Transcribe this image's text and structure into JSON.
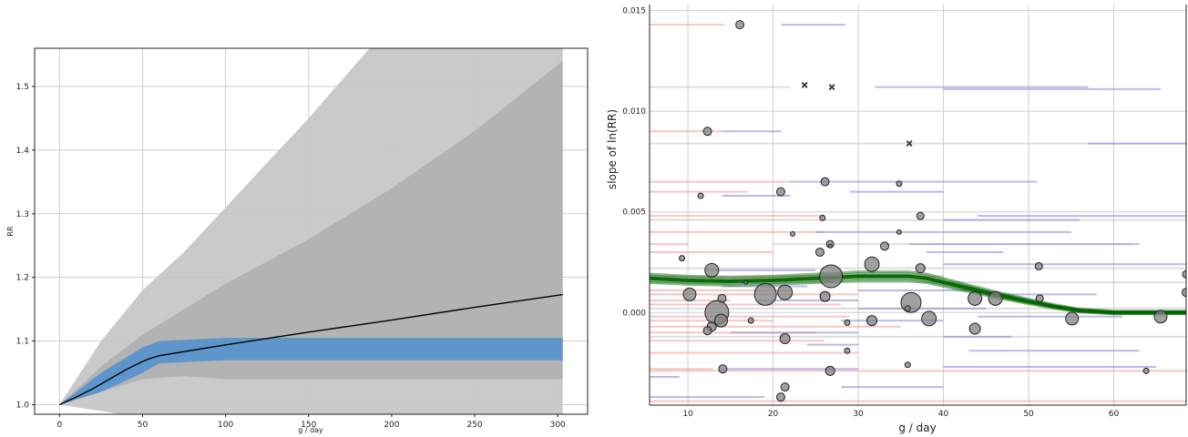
{
  "chart_data": [
    {
      "type": "line",
      "xlabel": "g / day",
      "ylabel": "RR",
      "xlim": [
        -15,
        318
      ],
      "ylim": [
        0.985,
        1.56
      ],
      "xticks": [
        "0",
        "50",
        "100",
        "150",
        "200",
        "250",
        "300"
      ],
      "yticks": [
        "1.0",
        "1.1",
        "1.2",
        "1.3",
        "1.4",
        "1.5"
      ],
      "grid": true,
      "bands": [
        {
          "name": "outer",
          "color": "#c4c4c4",
          "x": [
            0,
            25,
            50,
            75,
            100,
            150,
            200,
            250,
            303
          ],
          "upper": [
            1.0,
            1.1,
            1.18,
            1.24,
            1.31,
            1.45,
            1.6,
            1.75,
            1.9
          ],
          "lower": [
            1.0,
            0.99,
            0.98,
            0.98,
            0.98,
            0.98,
            0.98,
            0.98,
            0.98
          ]
        },
        {
          "name": "inner",
          "color": "#b0b0b0",
          "x": [
            0,
            25,
            50,
            75,
            100,
            150,
            200,
            250,
            303
          ],
          "upper": [
            1.0,
            1.06,
            1.11,
            1.15,
            1.19,
            1.26,
            1.34,
            1.43,
            1.54
          ],
          "lower": [
            1.0,
            1.02,
            1.04,
            1.045,
            1.04,
            1.04,
            1.04,
            1.04,
            1.04
          ]
        },
        {
          "name": "core",
          "color": "#4f8fcf",
          "x": [
            0,
            25,
            50,
            60,
            100,
            150,
            200,
            250,
            303
          ],
          "upper": [
            1.0,
            1.05,
            1.09,
            1.1,
            1.105,
            1.105,
            1.105,
            1.105,
            1.105
          ],
          "lower": [
            1.0,
            1.02,
            1.05,
            1.065,
            1.07,
            1.07,
            1.07,
            1.07,
            1.07
          ]
        }
      ],
      "series": [
        {
          "color": "#000000",
          "x": [
            0,
            10,
            20,
            30,
            40,
            50,
            55,
            60,
            100,
            150,
            200,
            250,
            303
          ],
          "y": [
            1.0,
            1.012,
            1.025,
            1.04,
            1.055,
            1.068,
            1.073,
            1.077,
            1.094,
            1.114,
            1.133,
            1.153,
            1.173
          ]
        }
      ]
    },
    {
      "type": "scatter",
      "xlabel": "g / day",
      "ylabel": "slope of ln(RR)",
      "xlim": [
        5.5,
        68.5
      ],
      "ylim": [
        -0.0046,
        0.0153
      ],
      "xticks": [
        "10",
        "20",
        "30",
        "40",
        "50",
        "60"
      ],
      "yticks": [
        "0.000",
        "0.005",
        "0.010",
        "0.015"
      ],
      "grid": true,
      "points": [
        {
          "x": 16.1,
          "y": 0.0143,
          "r": 4.5
        },
        {
          "x": 12.3,
          "y": 0.009,
          "r": 4.5
        },
        {
          "x": 11.5,
          "y": 0.0058,
          "r": 3
        },
        {
          "x": 20.9,
          "y": 0.006,
          "r": 4.5
        },
        {
          "x": 26.1,
          "y": 0.0065,
          "r": 4.5
        },
        {
          "x": 34.8,
          "y": 0.0064,
          "r": 3
        },
        {
          "x": 25.8,
          "y": 0.0047,
          "r": 3
        },
        {
          "x": 22.3,
          "y": 0.0039,
          "r": 2.5
        },
        {
          "x": 37.3,
          "y": 0.0048,
          "r": 4
        },
        {
          "x": 34.8,
          "y": 0.004,
          "r": 2.5
        },
        {
          "x": 26.7,
          "y": 0.0034,
          "r": 4
        },
        {
          "x": 26.7,
          "y": 0.0033,
          "r": 2
        },
        {
          "x": 25.5,
          "y": 0.003,
          "r": 4.5
        },
        {
          "x": 33.1,
          "y": 0.0033,
          "r": 4.5
        },
        {
          "x": 9.3,
          "y": 0.0027,
          "r": 3
        },
        {
          "x": 12.8,
          "y": 0.0021,
          "r": 7.5
        },
        {
          "x": 26.8,
          "y": 0.0018,
          "r": 12.5
        },
        {
          "x": 31.6,
          "y": 0.0024,
          "r": 8
        },
        {
          "x": 37.3,
          "y": 0.0022,
          "r": 5
        },
        {
          "x": 51.2,
          "y": 0.0023,
          "r": 4
        },
        {
          "x": 16.8,
          "y": 0.0015,
          "r": 2
        },
        {
          "x": 10.2,
          "y": 0.0009,
          "r": 7
        },
        {
          "x": 14.0,
          "y": 0.0007,
          "r": 4.5
        },
        {
          "x": 19.1,
          "y": 0.0009,
          "r": 12
        },
        {
          "x": 21.4,
          "y": 0.001,
          "r": 8
        },
        {
          "x": 26.1,
          "y": 0.0008,
          "r": 5.5
        },
        {
          "x": 36.2,
          "y": 0.0005,
          "r": 11
        },
        {
          "x": 35.8,
          "y": 0.0002,
          "r": 3
        },
        {
          "x": 43.7,
          "y": 0.0007,
          "r": 7.5
        },
        {
          "x": 46.1,
          "y": 0.0007,
          "r": 7.5
        },
        {
          "x": 51.3,
          "y": 0.0007,
          "r": 4
        },
        {
          "x": 68.5,
          "y": 0.001,
          "r": 4.5
        },
        {
          "x": 68.5,
          "y": 0.0019,
          "r": 4
        },
        {
          "x": 13.4,
          "y": 0.0,
          "r": 13
        },
        {
          "x": 13.9,
          "y": -0.0004,
          "r": 7
        },
        {
          "x": 12.8,
          "y": -0.0007,
          "r": 5
        },
        {
          "x": 12.3,
          "y": -0.0009,
          "r": 4.5
        },
        {
          "x": 17.4,
          "y": -0.0004,
          "r": 3
        },
        {
          "x": 21.4,
          "y": -0.0013,
          "r": 5.5
        },
        {
          "x": 28.7,
          "y": -0.0005,
          "r": 3
        },
        {
          "x": 31.6,
          "y": -0.0004,
          "r": 5.5
        },
        {
          "x": 38.3,
          "y": -0.0003,
          "r": 8
        },
        {
          "x": 43.7,
          "y": -0.0008,
          "r": 6
        },
        {
          "x": 55.1,
          "y": -0.0003,
          "r": 7
        },
        {
          "x": 65.5,
          "y": -0.0002,
          "r": 7
        },
        {
          "x": 28.7,
          "y": -0.0019,
          "r": 3
        },
        {
          "x": 14.1,
          "y": -0.0028,
          "r": 4.5
        },
        {
          "x": 26.7,
          "y": -0.0029,
          "r": 5
        },
        {
          "x": 35.8,
          "y": -0.0026,
          "r": 3
        },
        {
          "x": 63.8,
          "y": -0.0029,
          "r": 3
        },
        {
          "x": 21.4,
          "y": -0.0037,
          "r": 4.5
        },
        {
          "x": 20.9,
          "y": -0.0042,
          "r": 4.5
        }
      ],
      "crosses": [
        {
          "x": 23.7,
          "y": 0.0113
        },
        {
          "x": 26.9,
          "y": 0.0112
        },
        {
          "x": 36.0,
          "y": 0.0084
        }
      ],
      "intervals": [
        {
          "x0": 5.5,
          "x1": 14.3,
          "y": 0.0143,
          "color": "red"
        },
        {
          "x0": 21.0,
          "x1": 28.5,
          "y": 0.0143,
          "color": "blue"
        },
        {
          "x0": 5.5,
          "x1": 22.0,
          "y": 0.0112,
          "color": "gray"
        },
        {
          "x0": 32.0,
          "x1": 57.0,
          "y": 0.0112,
          "color": "blue"
        },
        {
          "x0": 40.0,
          "x1": 65.5,
          "y": 0.0111,
          "color": "blue"
        },
        {
          "x0": 14.0,
          "x1": 21.0,
          "y": 0.009,
          "color": "blue"
        },
        {
          "x0": 5.5,
          "x1": 14.0,
          "y": 0.009,
          "color": "red"
        },
        {
          "x0": 5.5,
          "x1": 68.5,
          "y": 0.0084,
          "color": "gray"
        },
        {
          "x0": 57.0,
          "x1": 68.5,
          "y": 0.0084,
          "color": "blue"
        },
        {
          "x0": 5.5,
          "x1": 22.0,
          "y": 0.0065,
          "color": "red"
        },
        {
          "x0": 22.0,
          "x1": 51.0,
          "y": 0.0065,
          "color": "blue"
        },
        {
          "x0": 5.5,
          "x1": 17.0,
          "y": 0.006,
          "color": "red"
        },
        {
          "x0": 29.0,
          "x1": 40.0,
          "y": 0.006,
          "color": "blue"
        },
        {
          "x0": 14.0,
          "x1": 22.0,
          "y": 0.0058,
          "color": "blue"
        },
        {
          "x0": 5.5,
          "x1": 26.0,
          "y": 0.0048,
          "color": "red"
        },
        {
          "x0": 44.0,
          "x1": 68.5,
          "y": 0.0048,
          "color": "blue"
        },
        {
          "x0": 5.5,
          "x1": 68.5,
          "y": 0.0046,
          "color": "gray"
        },
        {
          "x0": 40.0,
          "x1": 56.0,
          "y": 0.0046,
          "color": "blue"
        },
        {
          "x0": 5.5,
          "x1": 26.0,
          "y": 0.004,
          "color": "red"
        },
        {
          "x0": 25.0,
          "x1": 55.0,
          "y": 0.004,
          "color": "blue"
        },
        {
          "x0": 5.5,
          "x1": 10.0,
          "y": 0.0034,
          "color": "red"
        },
        {
          "x0": 20.0,
          "x1": 62.0,
          "y": 0.0034,
          "color": "gray"
        },
        {
          "x0": 36.0,
          "x1": 63.0,
          "y": 0.0034,
          "color": "blue"
        },
        {
          "x0": 5.5,
          "x1": 20.0,
          "y": 0.003,
          "color": "red"
        },
        {
          "x0": 38.0,
          "x1": 47.0,
          "y": 0.003,
          "color": "blue"
        },
        {
          "x0": 40.0,
          "x1": 68.5,
          "y": 0.0024,
          "color": "blue"
        },
        {
          "x0": 5.5,
          "x1": 68.5,
          "y": 0.0022,
          "color": "gray"
        },
        {
          "x0": 12.0,
          "x1": 25.0,
          "y": 0.0021,
          "color": "blue"
        },
        {
          "x0": 5.5,
          "x1": 40.0,
          "y": 0.0018,
          "color": "red"
        },
        {
          "x0": 5.5,
          "x1": 68.5,
          "y": 0.0015,
          "color": "gray"
        },
        {
          "x0": 14.0,
          "x1": 24.0,
          "y": 0.0013,
          "color": "blue"
        },
        {
          "x0": 5.5,
          "x1": 22.0,
          "y": 0.0011,
          "color": "red"
        },
        {
          "x0": 30.0,
          "x1": 44.0,
          "y": 0.0011,
          "color": "blue"
        },
        {
          "x0": 5.5,
          "x1": 30.0,
          "y": 0.0009,
          "color": "red"
        },
        {
          "x0": 45.0,
          "x1": 58.0,
          "y": 0.0009,
          "color": "blue"
        },
        {
          "x0": 5.5,
          "x1": 15.0,
          "y": 0.0006,
          "color": "red"
        },
        {
          "x0": 18.0,
          "x1": 30.0,
          "y": 0.0006,
          "color": "blue"
        },
        {
          "x0": 5.5,
          "x1": 28.0,
          "y": 0.0004,
          "color": "red"
        },
        {
          "x0": 5.5,
          "x1": 68.5,
          "y": 0.0002,
          "color": "gray"
        },
        {
          "x0": 30.0,
          "x1": 45.0,
          "y": 0.0002,
          "color": "blue"
        },
        {
          "x0": 5.5,
          "x1": 29.0,
          "y": -0.0002,
          "color": "red"
        },
        {
          "x0": 44.0,
          "x1": 61.0,
          "y": -0.0002,
          "color": "blue"
        },
        {
          "x0": 5.5,
          "x1": 20.0,
          "y": -0.0004,
          "color": "red"
        },
        {
          "x0": 28.0,
          "x1": 40.0,
          "y": -0.0004,
          "color": "blue"
        },
        {
          "x0": 5.5,
          "x1": 35.0,
          "y": -0.0007,
          "color": "red"
        },
        {
          "x0": 5.5,
          "x1": 25.0,
          "y": -0.001,
          "color": "red"
        },
        {
          "x0": 15.0,
          "x1": 30.0,
          "y": -0.001,
          "color": "blue"
        },
        {
          "x0": 5.5,
          "x1": 68.5,
          "y": -0.0012,
          "color": "gray"
        },
        {
          "x0": 40.0,
          "x1": 48.0,
          "y": -0.0012,
          "color": "blue"
        },
        {
          "x0": 5.5,
          "x1": 26.0,
          "y": -0.0014,
          "color": "red"
        },
        {
          "x0": 24.0,
          "x1": 30.0,
          "y": -0.0016,
          "color": "blue"
        },
        {
          "x0": 5.5,
          "x1": 30.0,
          "y": -0.002,
          "color": "red"
        },
        {
          "x0": 43.0,
          "x1": 63.0,
          "y": -0.0019,
          "color": "blue"
        },
        {
          "x0": 5.5,
          "x1": 13.0,
          "y": -0.0028,
          "color": "red"
        },
        {
          "x0": 14.0,
          "x1": 30.0,
          "y": -0.0028,
          "color": "blue"
        },
        {
          "x0": 40.0,
          "x1": 65.0,
          "y": -0.0027,
          "color": "blue"
        },
        {
          "x0": 5.5,
          "x1": 68.5,
          "y": -0.0029,
          "color": "red"
        },
        {
          "x0": 5.5,
          "x1": 9.0,
          "y": -0.0032,
          "color": "blue"
        },
        {
          "x0": 28.0,
          "x1": 40.0,
          "y": -0.0037,
          "color": "blue"
        },
        {
          "x0": 5.5,
          "x1": 19.0,
          "y": -0.0042,
          "color": "blue"
        },
        {
          "x0": 5.5,
          "x1": 68.5,
          "y": -0.0044,
          "color": "red"
        }
      ],
      "curve": {
        "color": "#006400",
        "x": [
          5.5,
          10,
          15,
          20,
          25,
          30,
          33,
          36,
          38,
          40,
          43,
          46,
          50,
          53,
          56,
          60,
          65,
          68.5
        ],
        "y": [
          0.0017,
          0.0016,
          0.00155,
          0.0016,
          0.0017,
          0.0018,
          0.0018,
          0.0018,
          0.0017,
          0.0015,
          0.0012,
          0.0009,
          0.00055,
          0.0003,
          0.0001,
          0.0,
          0.0,
          0.0
        ]
      }
    }
  ]
}
